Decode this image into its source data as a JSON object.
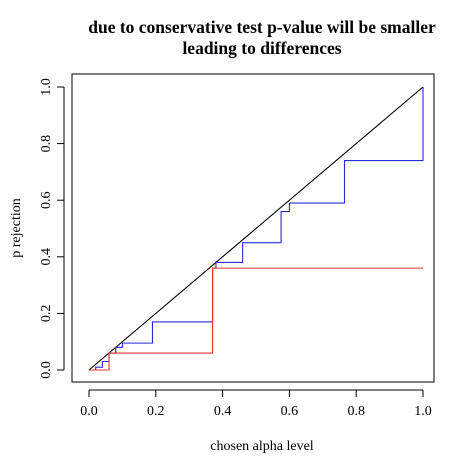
{
  "chart_data": {
    "type": "line",
    "title_line1": "due to conservative test p-value will be smaller",
    "title_line2": "leading to differences",
    "xlabel": "chosen alpha level",
    "ylabel": "p rejection",
    "xlim": [
      0.0,
      1.0
    ],
    "ylim": [
      0.0,
      1.0
    ],
    "x_ticks": [
      "0.0",
      "0.2",
      "0.4",
      "0.6",
      "0.8",
      "1.0"
    ],
    "y_ticks": [
      "0.0",
      "0.2",
      "0.4",
      "0.6",
      "0.8",
      "1.0"
    ],
    "grid": false,
    "legend": "none",
    "series": [
      {
        "color": "#000000",
        "style": "line",
        "x": [
          0.0,
          1.0
        ],
        "y": [
          0.0,
          1.0
        ]
      },
      {
        "color": "#2b2bdb",
        "style": "step",
        "x": [
          0.0,
          0.02,
          0.04,
          0.06,
          0.08,
          0.1,
          0.19,
          0.37,
          0.38,
          0.46,
          0.575,
          0.6,
          0.765,
          1.0
        ],
        "y": [
          0.0,
          0.01,
          0.03,
          0.06,
          0.08,
          0.095,
          0.17,
          0.36,
          0.38,
          0.45,
          0.56,
          0.59,
          0.74,
          1.0
        ]
      },
      {
        "color": "#e83030",
        "style": "step",
        "x": [
          0.0,
          0.06,
          0.07,
          0.37,
          0.38,
          1.0
        ],
        "y": [
          0.0,
          0.06,
          0.06,
          0.36,
          0.36,
          0.36
        ]
      }
    ]
  }
}
